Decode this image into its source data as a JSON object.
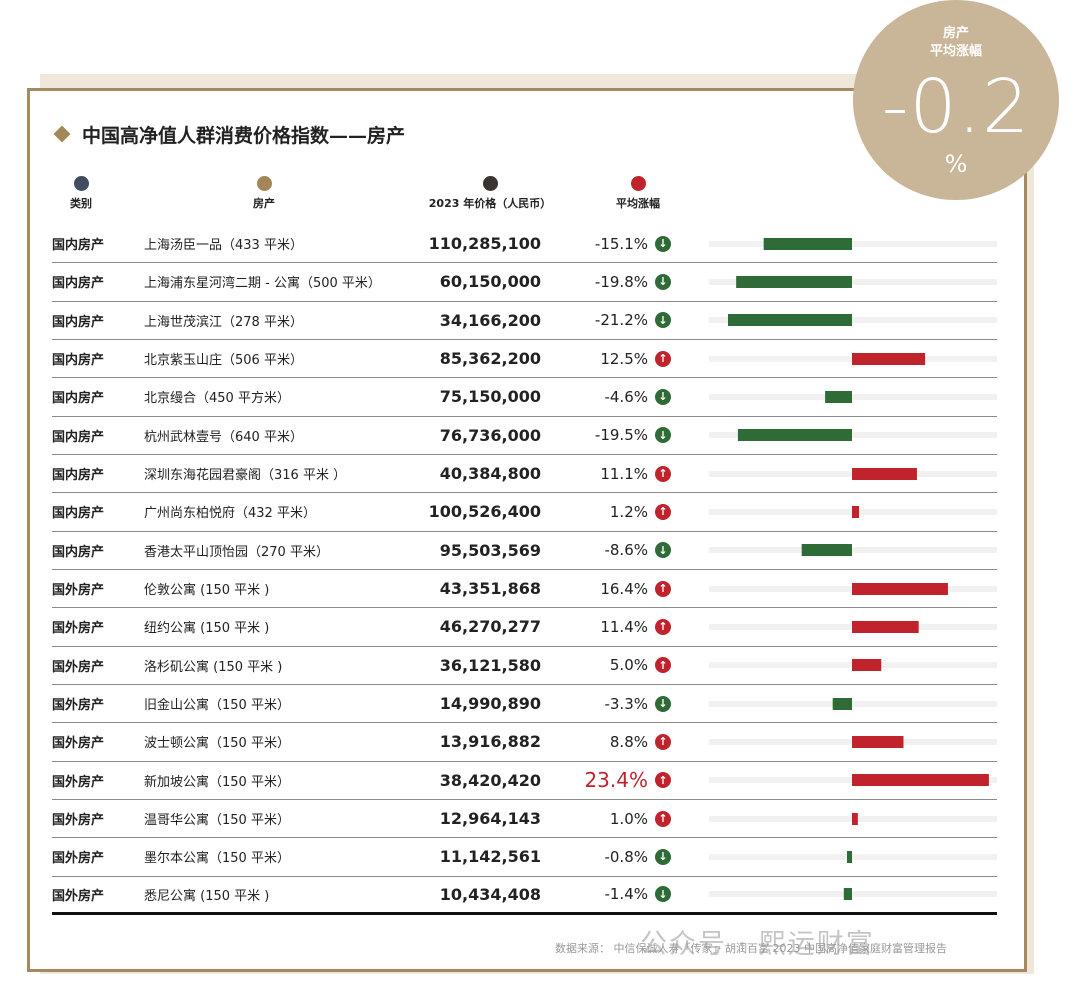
{
  "title": "中国高净值人群消费价格指数——房产",
  "badge": {
    "line1": "房产",
    "line2": "平均涨幅",
    "value": "-0.2",
    "unit": "%"
  },
  "headers": [
    {
      "label": "类别",
      "color": "#414b62"
    },
    {
      "label": "房产",
      "color": "#a38758"
    },
    {
      "label": "2023 年价格（人民币）",
      "color": "#3b3531"
    },
    {
      "label": "平均涨幅",
      "color": "#c0232b"
    }
  ],
  "colors": {
    "up": "#c0232b",
    "down": "#2f6b37",
    "track": "#f1f1f1"
  },
  "chart_data": {
    "type": "bar",
    "orientation": "horizontal",
    "categories": [
      "上海汤臣一品（433 平米）",
      "上海浦东星河湾二期 - 公寓（500 平米）",
      "上海世茂滨江（278 平米）",
      "北京紫玉山庄（506 平米）",
      "北京缦合（450 平方米）",
      "杭州武林壹号（640 平米）",
      "深圳东海花园君豪阁（316 平米 ）",
      "广州尚东柏悦府（432 平米）",
      "香港太平山顶怡园（270 平米）",
      "伦敦公寓 (150 平米 )",
      "纽约公寓 (150 平米 )",
      "洛杉矶公寓 (150 平米 )",
      "旧金山公寓（150 平米）",
      "波士顿公寓（150 平米）",
      "新加坡公寓（150 平米）",
      "温哥华公寓（150 平米）",
      "墨尔本公寓（150 平米）",
      "悉尼公寓 (150 平米 )"
    ],
    "values": [
      -15.1,
      -19.8,
      -21.2,
      12.5,
      -4.6,
      -19.5,
      11.1,
      1.2,
      -8.6,
      16.4,
      11.4,
      5.0,
      -3.3,
      8.8,
      23.4,
      1.0,
      -0.8,
      -1.4
    ],
    "xlim": [
      -25,
      25
    ]
  },
  "rows": [
    {
      "category": "国内房产",
      "name": "上海汤臣一品（433 平米）",
      "price": "110,285,100",
      "change": "-15.1%"
    },
    {
      "category": "国内房产",
      "name": "上海浦东星河湾二期 - 公寓（500 平米）",
      "price": "60,150,000",
      "change": "-19.8%"
    },
    {
      "category": "国内房产",
      "name": "上海世茂滨江（278 平米）",
      "price": "34,166,200",
      "change": "-21.2%"
    },
    {
      "category": "国内房产",
      "name": "北京紫玉山庄（506 平米）",
      "price": "85,362,200",
      "change": "12.5%"
    },
    {
      "category": "国内房产",
      "name": "北京缦合（450 平方米）",
      "price": "75,150,000",
      "change": "-4.6%"
    },
    {
      "category": "国内房产",
      "name": "杭州武林壹号（640 平米）",
      "price": "76,736,000",
      "change": "-19.5%"
    },
    {
      "category": "国内房产",
      "name": "深圳东海花园君豪阁（316 平米 ）",
      "price": "40,384,800",
      "change": "11.1%"
    },
    {
      "category": "国内房产",
      "name": "广州尚东柏悦府（432 平米）",
      "price": "100,526,400",
      "change": "1.2%"
    },
    {
      "category": "国内房产",
      "name": "香港太平山顶怡园（270 平米）",
      "price": "95,503,569",
      "change": "-8.6%"
    },
    {
      "category": "国外房产",
      "name": "伦敦公寓 (150 平米 )",
      "price": "43,351,868",
      "change": "16.4%"
    },
    {
      "category": "国外房产",
      "name": "纽约公寓 (150 平米 )",
      "price": "46,270,277",
      "change": "11.4%"
    },
    {
      "category": "国外房产",
      "name": "洛杉矶公寓 (150 平米 )",
      "price": "36,121,580",
      "change": "5.0%"
    },
    {
      "category": "国外房产",
      "name": "旧金山公寓（150 平米）",
      "price": "14,990,890",
      "change": "-3.3%"
    },
    {
      "category": "国外房产",
      "name": "波士顿公寓（150 平米）",
      "price": "13,916,882",
      "change": "8.8%"
    },
    {
      "category": "国外房产",
      "name": "新加坡公寓（150 平米）",
      "price": "38,420,420",
      "change": "23.4%",
      "highlight": true
    },
    {
      "category": "国外房产",
      "name": "温哥华公寓（150 平米）",
      "price": "12,964,143",
      "change": "1.0%"
    },
    {
      "category": "国外房产",
      "name": "墨尔本公寓（150 平米）",
      "price": "11,142,561",
      "change": "-0.8%"
    },
    {
      "category": "国外房产",
      "name": "悉尼公寓 (150 平米 )",
      "price": "10,434,408",
      "change": "-1.4%"
    }
  ],
  "footnote": "数据来源： 中信保诚人寿「传家」· 胡润百富 2023 中国高净值家庭财富管理报告",
  "watermark": "公众号 · 熙运财富"
}
